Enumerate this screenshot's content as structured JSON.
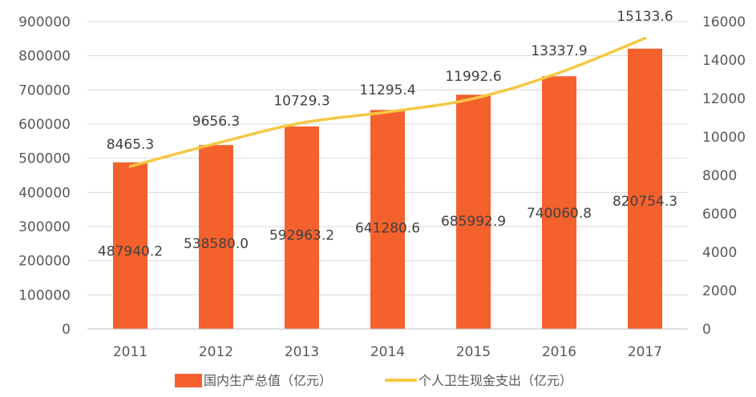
{
  "chart_data": {
    "type": "bar",
    "categories": [
      "2011",
      "2012",
      "2013",
      "2014",
      "2015",
      "2016",
      "2017"
    ],
    "series": [
      {
        "name": "国内生产总值（亿元）",
        "type": "bar",
        "axis": "left",
        "color": "#f4612d",
        "values": [
          487940.2,
          538580.0,
          592963.2,
          641280.6,
          685992.9,
          740060.8,
          820754.3
        ],
        "labels": [
          "487940.2",
          "538580.0",
          "592963.2",
          "641280.6",
          "685992.9",
          "740060.8",
          "820754.3"
        ]
      },
      {
        "name": "个人卫生现金支出（亿元）",
        "type": "line",
        "axis": "right",
        "color": "#f5c842",
        "values": [
          8465.3,
          9656.3,
          10729.3,
          11295.4,
          11992.6,
          13337.9,
          15133.6
        ],
        "labels": [
          "8465.3",
          "9656.3",
          "10729.3",
          "11295.4",
          "11992.6",
          "13337.9",
          "15133.6"
        ]
      }
    ],
    "y_left": {
      "ylim": [
        0,
        900000
      ],
      "ticks": [
        "0",
        "100000",
        "200000",
        "300000",
        "400000",
        "500000",
        "600000",
        "700000",
        "800000",
        "900000"
      ]
    },
    "y_right": {
      "ylim": [
        0,
        16000
      ],
      "ticks": [
        "0",
        "2000",
        "4000",
        "6000",
        "8000",
        "10000",
        "12000",
        "14000",
        "16000"
      ]
    },
    "grid": true,
    "legend": "bottom",
    "title": "",
    "xlabel": "",
    "ylabel": ""
  }
}
